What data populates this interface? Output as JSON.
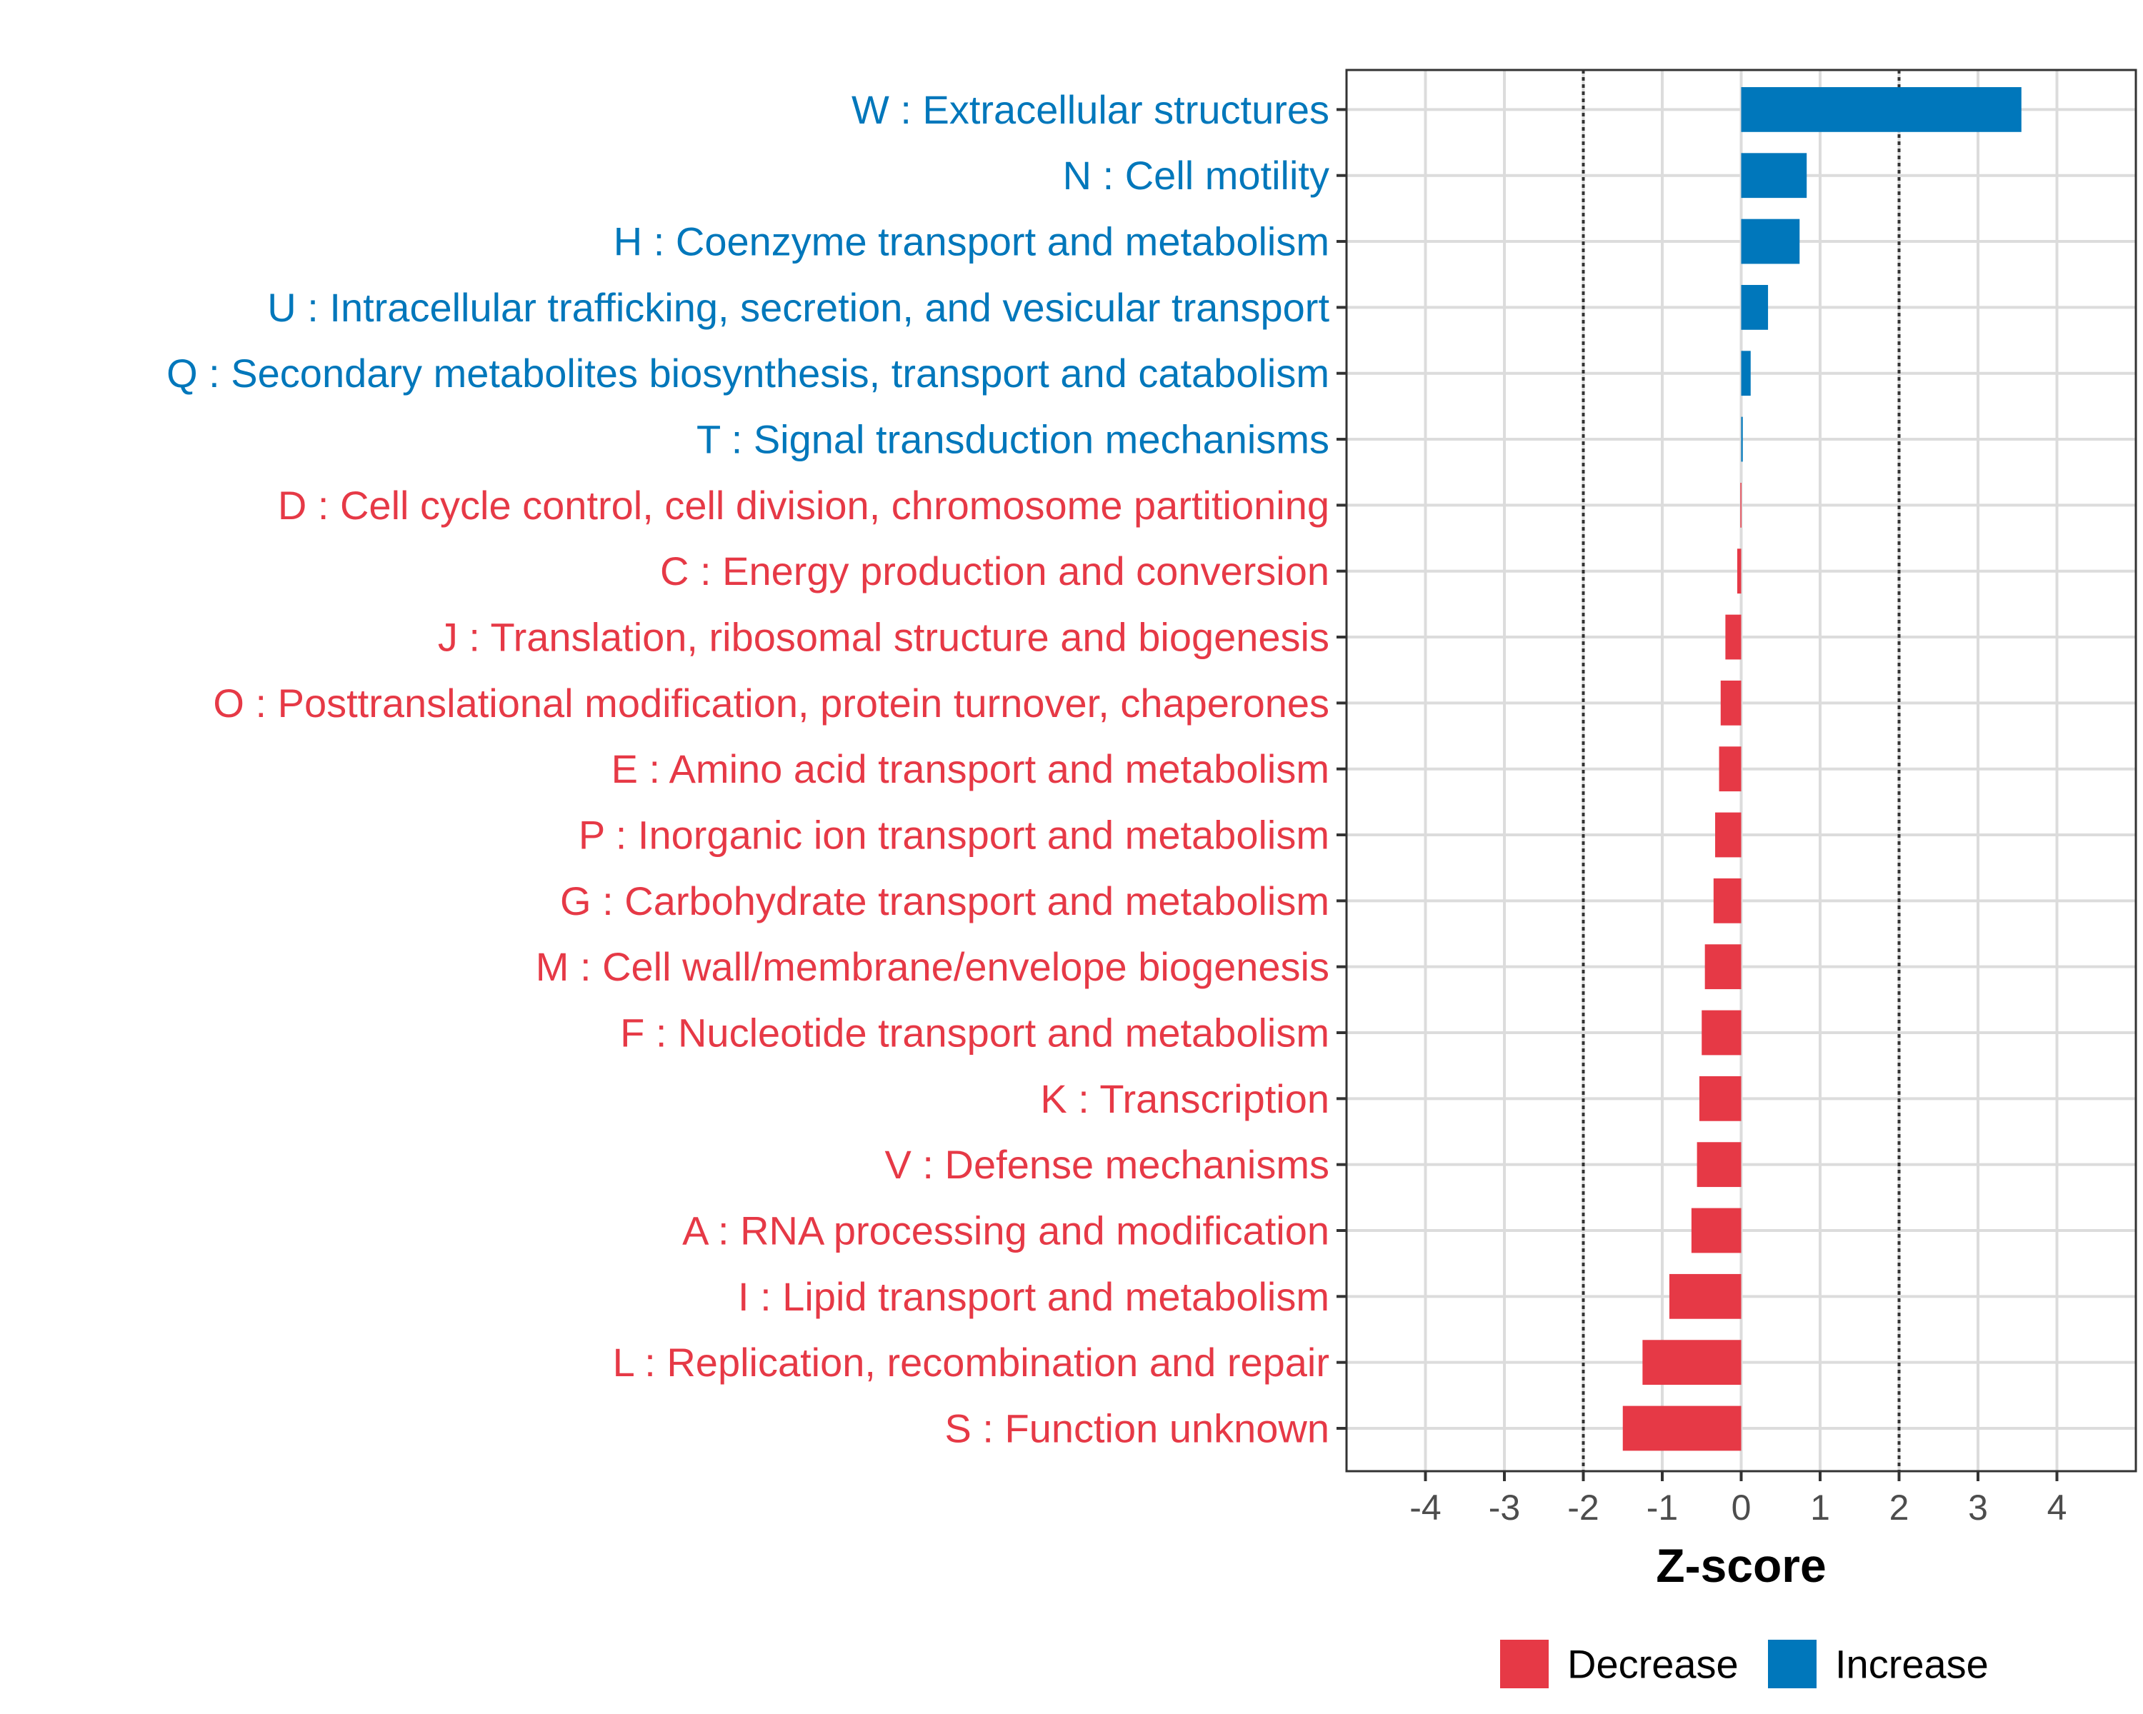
{
  "chart_data": {
    "type": "bar",
    "orientation": "horizontal",
    "xlabel": "Z-score",
    "xlim": [
      -5,
      5
    ],
    "xticks": [
      -4,
      -3,
      -2,
      -1,
      0,
      1,
      2,
      3,
      4
    ],
    "reference_lines": [
      -2,
      2
    ],
    "grid": true,
    "categories": [
      "W : Extracellular structures",
      "N : Cell motility",
      "H : Coenzyme transport and metabolism",
      "U : Intracellular trafficking, secretion, and vesicular transport",
      "Q : Secondary metabolites biosynthesis, transport and catabolism",
      "T : Signal transduction mechanisms",
      "D : Cell cycle control, cell division, chromosome partitioning",
      "C : Energy production and conversion",
      "J : Translation, ribosomal structure and biogenesis",
      "O : Posttranslational modification, protein turnover, chaperones",
      "E : Amino acid transport and metabolism",
      "P : Inorganic ion transport and metabolism",
      "G : Carbohydrate transport and metabolism",
      "M : Cell wall/membrane/envelope biogenesis",
      "F : Nucleotide transport and metabolism",
      "K : Transcription",
      "V : Defense mechanisms",
      "A : RNA processing and modification",
      "I : Lipid transport and metabolism",
      "L : Replication, recombination and repair",
      "S : Function unknown"
    ],
    "values": [
      3.55,
      0.83,
      0.74,
      0.34,
      0.12,
      0.02,
      -0.01,
      -0.05,
      -0.2,
      -0.26,
      -0.28,
      -0.33,
      -0.35,
      -0.46,
      -0.5,
      -0.53,
      -0.56,
      -0.63,
      -0.91,
      -1.25,
      -1.5
    ],
    "groups": [
      "Increase",
      "Increase",
      "Increase",
      "Increase",
      "Increase",
      "Increase",
      "Decrease",
      "Decrease",
      "Decrease",
      "Decrease",
      "Decrease",
      "Decrease",
      "Decrease",
      "Decrease",
      "Decrease",
      "Decrease",
      "Decrease",
      "Decrease",
      "Decrease",
      "Decrease",
      "Decrease"
    ],
    "legend": {
      "position": "bottom",
      "entries": [
        {
          "label": "Decrease",
          "color": "#E63946"
        },
        {
          "label": "Increase",
          "color": "#0077BB"
        }
      ]
    }
  }
}
